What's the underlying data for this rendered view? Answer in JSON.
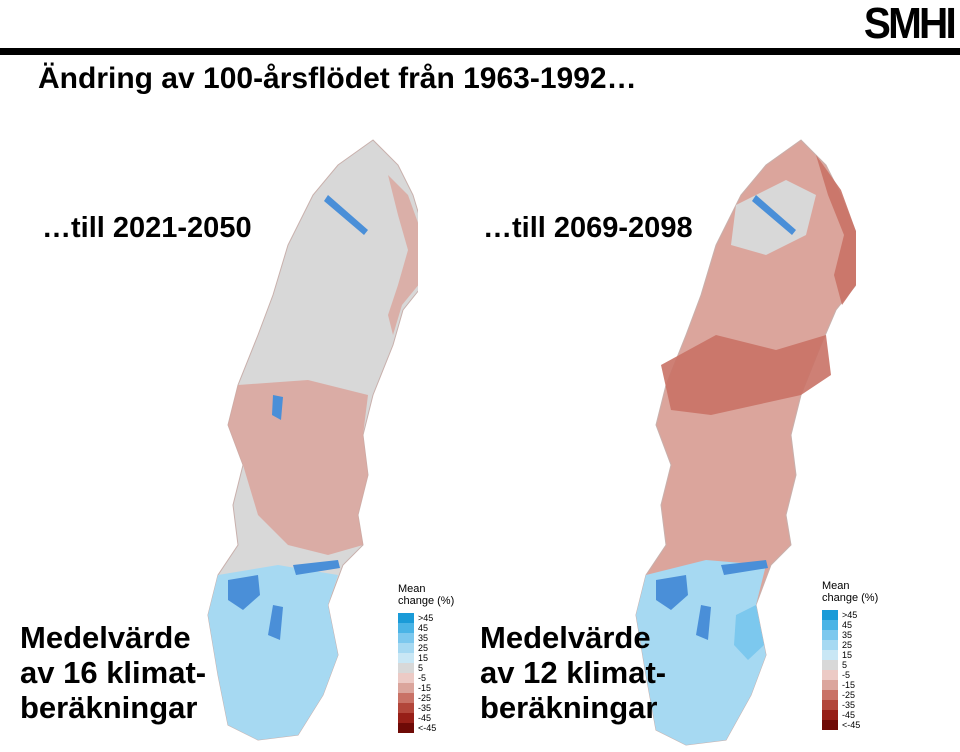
{
  "brand": {
    "logo": "SMHI"
  },
  "title": "Ändring av 100-årsflödet från 1963-1992…",
  "periods": {
    "left": "…till 2021-2050",
    "right": "…till 2069-2098"
  },
  "captions": {
    "left": [
      "Medelvärde",
      "av 16 klimat-",
      "beräkningar"
    ],
    "right": [
      "Medelvärde",
      "av 12 klimat-",
      "beräkningar"
    ]
  },
  "legend": {
    "title_line1": "Mean",
    "title_line2": "change (%)",
    "bins": [
      {
        "label": ">45",
        "color": "#1a9bd8"
      },
      {
        "label": "45",
        "color": "#4ab4e6"
      },
      {
        "label": "35",
        "color": "#7cc8ee"
      },
      {
        "label": "25",
        "color": "#a6d9f2"
      },
      {
        "label": "15",
        "color": "#c9e7f5"
      },
      {
        "label": "5",
        "color": "#d8d8d8"
      },
      {
        "label": "-5",
        "color": "#eccac5"
      },
      {
        "label": "-15",
        "color": "#dba59c"
      },
      {
        "label": "-25",
        "color": "#c97266"
      },
      {
        "label": "-35",
        "color": "#b2463a"
      },
      {
        "label": "-45",
        "color": "#971f17"
      },
      {
        "label": "<-45",
        "color": "#6e0a06"
      }
    ]
  },
  "colors": {
    "land": "#d8d8d8",
    "lake": "#4a8fd8",
    "increase": "#a6d9f2",
    "decrease": "#dba59c"
  }
}
